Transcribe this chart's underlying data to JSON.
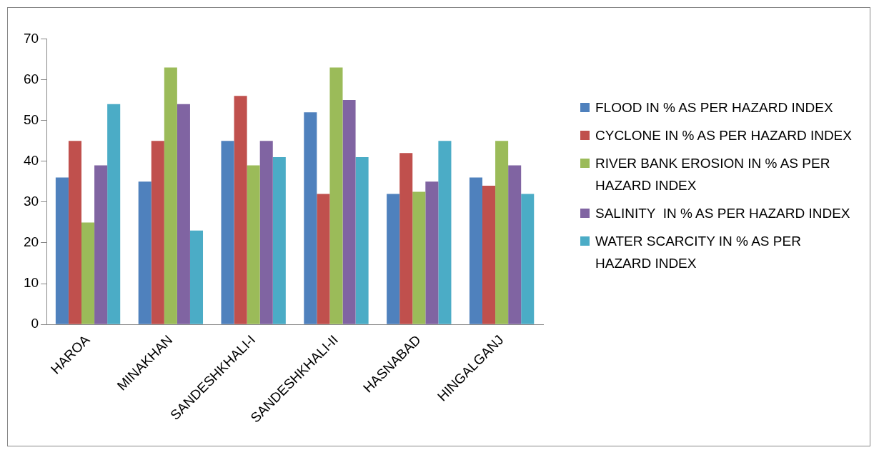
{
  "chart_data": {
    "type": "bar",
    "categories": [
      "HAROA",
      "MINAKHAN",
      "SANDESHKHALI-I",
      "SANDESHKHALI-II",
      "HASNABAD",
      "HINGALGANJ"
    ],
    "series": [
      {
        "name": "FLOOD IN % AS PER HAZARD INDEX",
        "color": "#4f81bd",
        "values": [
          36,
          35,
          45,
          52,
          32,
          36
        ]
      },
      {
        "name": "CYCLONE IN % AS PER HAZARD INDEX",
        "color": "#c0504d",
        "values": [
          45,
          45,
          56,
          32,
          42,
          34
        ]
      },
      {
        "name": "RIVER BANK EROSION IN % AS PER HAZARD INDEX",
        "color": "#9bbb59",
        "values": [
          25,
          63,
          39,
          63,
          32.5,
          45
        ]
      },
      {
        "name": "SALINITY  IN % AS PER HAZARD INDEX",
        "color": "#8064a2",
        "values": [
          39,
          54,
          45,
          55,
          35,
          39
        ]
      },
      {
        "name": "WATER SCARCITY IN % AS PER HAZARD INDEX",
        "color": "#4bacc6",
        "values": [
          54,
          23,
          41,
          41,
          45,
          32
        ]
      }
    ],
    "ylim": [
      0,
      70
    ],
    "yticks": [
      0,
      10,
      20,
      30,
      40,
      50,
      60,
      70
    ],
    "grid": false,
    "legend": "right"
  }
}
